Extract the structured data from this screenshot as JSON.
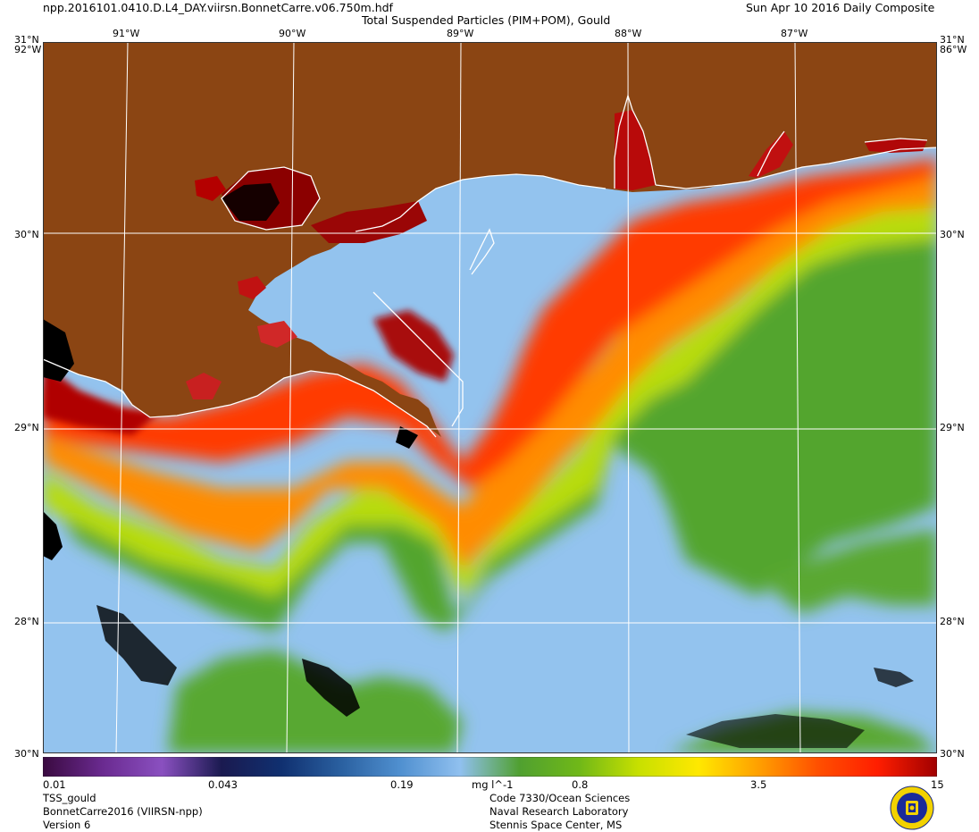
{
  "header": {
    "filename": "npp.2016101.0410.D.L4_DAY.viirsn.BonnetCarre.v06.750m.hdf",
    "title": "Total Suspended Particles (PIM+POM), Gould",
    "date": "Sun Apr 10 2016 Daily Composite"
  },
  "axes": {
    "lon_labels": [
      "91°W",
      "90°W",
      "89°W",
      "88°W",
      "87°W"
    ],
    "lat_labels": [
      "30°N",
      "29°N",
      "28°N"
    ],
    "corner_top": "31°N",
    "corner_top_sub": "92°W",
    "corner_top_right_sub": "86°W",
    "corner_bottom": "30°N"
  },
  "colorbar": {
    "ticks": [
      "0.01",
      "0.043",
      "0.19",
      "0.8",
      "3.5",
      "15"
    ],
    "unit": "mg l^-1",
    "colors": [
      "#3a0a40",
      "#6a2a90",
      "#8a50c0",
      "#1a1a50",
      "#103070",
      "#2a60a0",
      "#5090d0",
      "#90c0ef",
      "#50a030",
      "#70b818",
      "#c8e000",
      "#ffe800",
      "#ffa000",
      "#ff5000",
      "#ff1e00",
      "#a00000"
    ]
  },
  "footer": {
    "left": [
      "TSS_gould",
      "BonnetCarre2016 (VIIRSN-npp)",
      "Version 6"
    ],
    "center": [
      "Code 7330/Ocean Sciences",
      "Naval Research Laboratory",
      "Stennis Space Center, MS"
    ]
  },
  "map_colors": {
    "land": "#8b4513",
    "clear_water": "#93c3ee",
    "cloud": "#000000",
    "grid": "#ffffff"
  }
}
